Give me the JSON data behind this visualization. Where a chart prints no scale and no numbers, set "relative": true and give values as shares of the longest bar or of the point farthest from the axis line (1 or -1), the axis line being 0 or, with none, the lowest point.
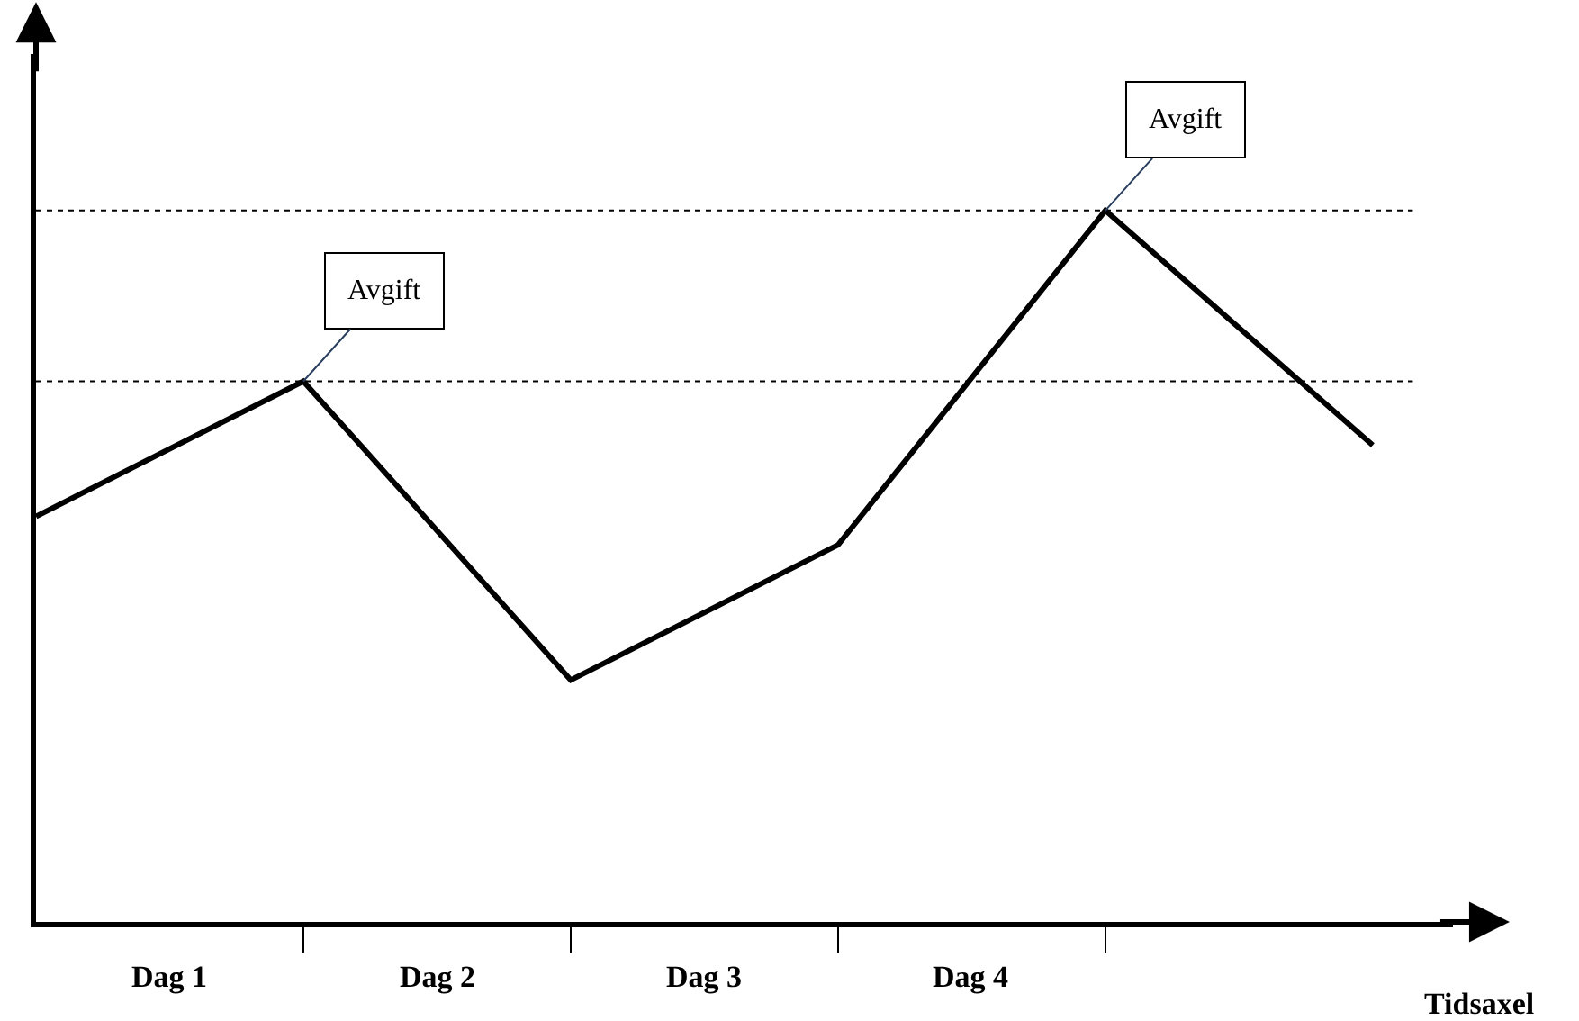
{
  "chart_data": {
    "type": "line",
    "relative": true,
    "xlabel": "Tidsaxel",
    "categories": [
      null,
      null,
      null,
      null,
      null,
      null
    ],
    "series": [
      {
        "color": "#000000",
        "values": [
          0.57,
          0.76,
          0.34,
          0.53,
          1,
          0.67
        ]
      }
    ],
    "ref_lines": [
      {
        "axis": "y",
        "value": 0.76,
        "line_style": "dotted",
        "color": "#000000"
      },
      {
        "axis": "y",
        "value": 1,
        "line_style": "dotted",
        "color": "#000000"
      }
    ],
    "annotations": [
      {
        "text": "Avgift",
        "y": 0.76
      },
      {
        "text": "Avgift",
        "y": 1
      },
      "Dag 1",
      "Dag 2",
      "Dag 3",
      "Dag 4"
    ],
    "marker": "none",
    "line_style": "solid"
  }
}
